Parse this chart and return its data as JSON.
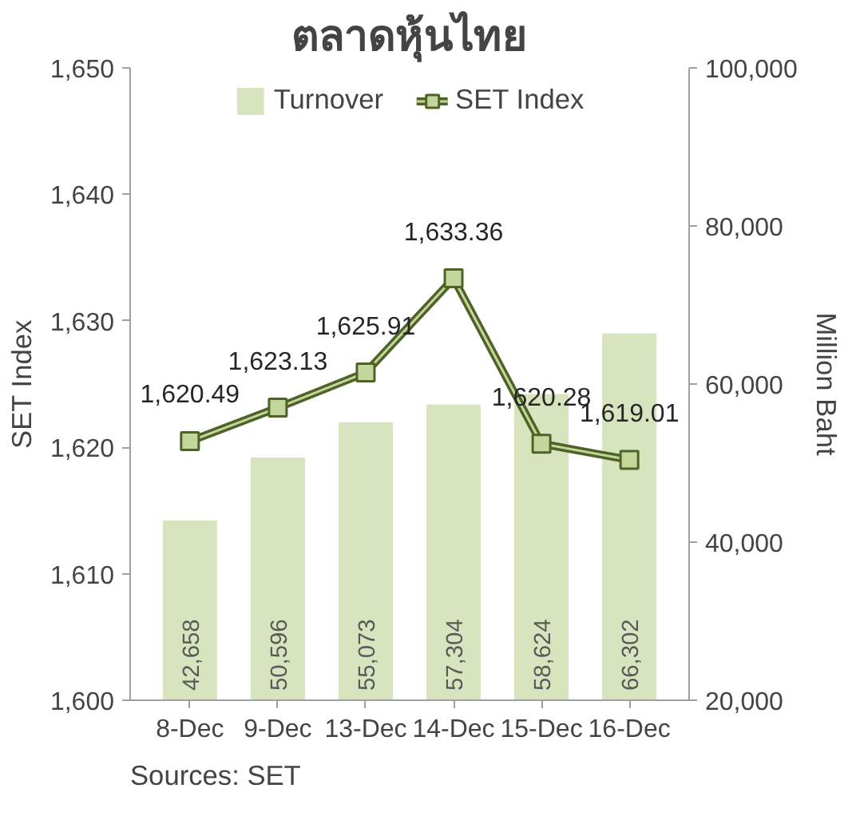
{
  "chart_data": {
    "type": "bar",
    "title": "ตลาดหุ้นไทย",
    "categories": [
      "8-Dec",
      "9-Dec",
      "13-Dec",
      "14-Dec",
      "15-Dec",
      "16-Dec"
    ],
    "series": [
      {
        "name": "Turnover",
        "axis": "y2",
        "color": "#d7e4bd",
        "values": [
          42658,
          50596,
          55073,
          57304,
          58624,
          66302
        ],
        "value_labels": [
          "42,658",
          "50,596",
          "55,073",
          "57,304",
          "58,624",
          "66,302"
        ]
      },
      {
        "name": "SET Index",
        "type": "line",
        "color": "#4f6228",
        "values": [
          1620.49,
          1623.13,
          1625.91,
          1633.36,
          1620.28,
          1619.01
        ],
        "value_labels": [
          "1,620.49",
          "1,623.13",
          "1,625.91",
          "1,633.36",
          "1,620.28",
          "1,619.01"
        ]
      }
    ],
    "ylabel": "SET Index",
    "y2label": "Million Baht",
    "ylim": [
      1600,
      1650
    ],
    "yticks": [
      {
        "value": 1600,
        "label": "1,600"
      },
      {
        "value": 1610,
        "label": "1,610"
      },
      {
        "value": 1620,
        "label": "1,620"
      },
      {
        "value": 1630,
        "label": "1,630"
      },
      {
        "value": 1640,
        "label": "1,640"
      },
      {
        "value": 1650,
        "label": "1,650"
      }
    ],
    "y2lim": [
      20000,
      100000
    ],
    "y2ticks": [
      {
        "value": 20000,
        "label": "20,000"
      },
      {
        "value": 40000,
        "label": "40,000"
      },
      {
        "value": 60000,
        "label": "60,000"
      },
      {
        "value": 80000,
        "label": "80,000"
      },
      {
        "value": 100000,
        "label": "100,000"
      }
    ],
    "legend": "top",
    "marker": "square",
    "grid": false,
    "annotations": [
      "Sources: SET"
    ]
  }
}
